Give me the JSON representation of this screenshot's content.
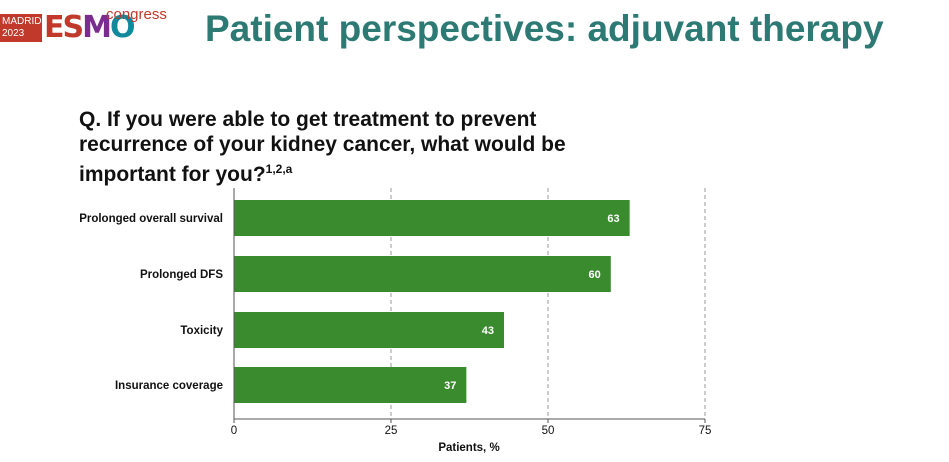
{
  "header": {
    "logo": {
      "city": "MADRID",
      "year": "2023",
      "brand_e": "E",
      "brand_s": "S",
      "brand_m": "M",
      "brand_o": "O",
      "suffix": "congress"
    },
    "title": "Patient perspectives: adjuvant therapy"
  },
  "question": {
    "text": "Q. If you were able to get treatment to prevent recurrence of your kidney cancer, what would be important for you?",
    "superscript": "1,2,a"
  },
  "chart_data": {
    "type": "bar",
    "orientation": "horizontal",
    "categories": [
      "Prolonged overall survival",
      "Prolonged DFS",
      "Toxicity",
      "Insurance coverage"
    ],
    "values": [
      63,
      60,
      43,
      37
    ],
    "xlabel": "Patients, %",
    "xlim": [
      0,
      75
    ],
    "xticks": [
      0,
      25,
      50,
      75
    ],
    "grid": "vertical dashed",
    "data_labels": true
  },
  "colors": {
    "bar": "#3a8a2e",
    "title": "#2c7a73",
    "grid": "#9a9a9a"
  }
}
